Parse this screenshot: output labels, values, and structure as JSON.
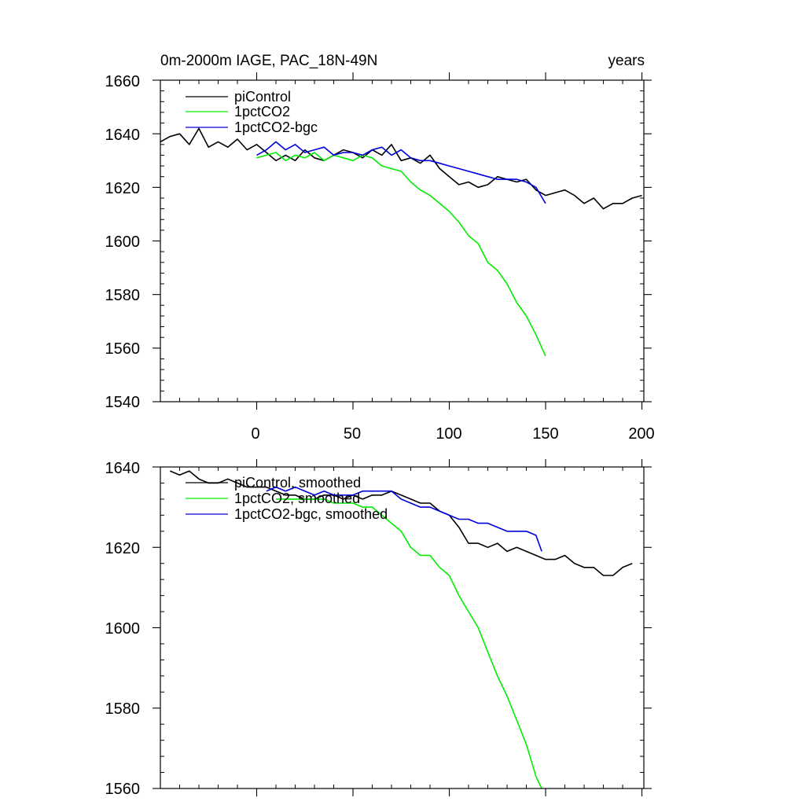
{
  "chart_data": [
    {
      "type": "line",
      "title": "0m-2000m IAGE, PAC_18N-49N",
      "units": "years",
      "xlim": [
        -50,
        201
      ],
      "ylim": [
        1540,
        1660
      ],
      "xticks": [
        0,
        50,
        100,
        150,
        200
      ],
      "xtick_labels": [
        "0",
        "50",
        "100",
        "150",
        "200"
      ],
      "yticks": [
        1540,
        1560,
        1580,
        1600,
        1620,
        1640,
        1660
      ],
      "ytick_labels": [
        "1540",
        "1560",
        "1580",
        "1600",
        "1620",
        "1640",
        "1660"
      ],
      "legend_position": "top-left",
      "series": [
        {
          "name": "piControl",
          "color": "#000000",
          "x": [
            -50,
            -45,
            -40,
            -35,
            -30,
            -25,
            -20,
            -15,
            -10,
            -5,
            0,
            5,
            10,
            15,
            20,
            25,
            30,
            35,
            40,
            45,
            50,
            55,
            60,
            65,
            70,
            75,
            80,
            85,
            90,
            95,
            100,
            105,
            110,
            115,
            120,
            125,
            130,
            135,
            140,
            145,
            150,
            155,
            160,
            165,
            170,
            175,
            180,
            185,
            190,
            195,
            200
          ],
          "values": [
            1637,
            1639,
            1640,
            1636,
            1642,
            1635,
            1637,
            1635,
            1638,
            1634,
            1636,
            1633,
            1630,
            1632,
            1630,
            1634,
            1631,
            1630,
            1632,
            1634,
            1633,
            1631,
            1634,
            1632,
            1636,
            1630,
            1631,
            1629,
            1632,
            1627,
            1624,
            1621,
            1622,
            1620,
            1621,
            1624,
            1623,
            1622,
            1623,
            1619,
            1617,
            1618,
            1619,
            1617,
            1614,
            1616,
            1612,
            1614,
            1614,
            1616,
            1617
          ]
        },
        {
          "name": "1pctCO2",
          "color": "#00ee00",
          "x": [
            0,
            5,
            10,
            15,
            20,
            25,
            30,
            35,
            40,
            45,
            50,
            55,
            60,
            65,
            70,
            75,
            80,
            85,
            90,
            95,
            100,
            105,
            110,
            115,
            120,
            125,
            130,
            135,
            140,
            145,
            150
          ],
          "values": [
            1631,
            1632,
            1633,
            1630,
            1632,
            1631,
            1633,
            1630,
            1632,
            1631,
            1630,
            1632,
            1631,
            1628,
            1627,
            1626,
            1622,
            1619,
            1617,
            1614,
            1611,
            1607,
            1602,
            1599,
            1592,
            1589,
            1584,
            1577,
            1572,
            1565,
            1557
          ]
        },
        {
          "name": "1pctCO2-bgc",
          "color": "#0000dd",
          "x": [
            0,
            5,
            10,
            15,
            20,
            25,
            30,
            35,
            40,
            45,
            50,
            55,
            60,
            65,
            70,
            75,
            80,
            85,
            90,
            95,
            100,
            105,
            110,
            115,
            120,
            125,
            130,
            135,
            140,
            145,
            150
          ],
          "values": [
            1632,
            1634,
            1637,
            1634,
            1636,
            1633,
            1634,
            1635,
            1632,
            1633,
            1633,
            1632,
            1634,
            1635,
            1632,
            1634,
            1631,
            1630,
            1630,
            1629,
            1628,
            1627,
            1626,
            1625,
            1624,
            1623,
            1623,
            1623,
            1622,
            1620,
            1614
          ]
        }
      ]
    },
    {
      "type": "line",
      "xlim": [
        -50,
        201
      ],
      "ylim": [
        1560,
        1640
      ],
      "xticks": [
        0,
        50,
        100,
        150,
        200
      ],
      "yticks": [
        1560,
        1580,
        1600,
        1620,
        1640
      ],
      "ytick_labels": [
        "1560",
        "1580",
        "1600",
        "1620",
        "1640"
      ],
      "legend_position": "top-left",
      "series": [
        {
          "name": "piControl, smoothed",
          "color": "#000000",
          "x": [
            -45,
            -40,
            -35,
            -30,
            -25,
            -20,
            -15,
            -10,
            -5,
            0,
            5,
            10,
            15,
            20,
            25,
            30,
            35,
            40,
            45,
            50,
            55,
            60,
            65,
            70,
            75,
            80,
            85,
            90,
            95,
            100,
            105,
            110,
            115,
            120,
            125,
            130,
            135,
            140,
            145,
            150,
            155,
            160,
            165,
            170,
            175,
            180,
            185,
            190,
            195
          ],
          "values": [
            1639,
            1638,
            1639,
            1637,
            1636,
            1636,
            1637,
            1636,
            1635,
            1635,
            1635,
            1634,
            1633,
            1633,
            1632,
            1632,
            1633,
            1633,
            1632,
            1633,
            1632,
            1633,
            1633,
            1634,
            1633,
            1632,
            1631,
            1631,
            1629,
            1628,
            1625,
            1621,
            1621,
            1620,
            1621,
            1619,
            1620,
            1619,
            1618,
            1617,
            1617,
            1618,
            1616,
            1615,
            1615,
            1613,
            1613,
            1615,
            1616
          ]
        },
        {
          "name": "1pctCO2, smoothed",
          "color": "#00ee00",
          "x": [
            10,
            15,
            20,
            25,
            30,
            35,
            40,
            45,
            50,
            55,
            60,
            65,
            70,
            75,
            80,
            85,
            90,
            95,
            100,
            105,
            110,
            115,
            120,
            125,
            130,
            135,
            140,
            145,
            148
          ],
          "values": [
            1632,
            1632,
            1632,
            1632,
            1632,
            1632,
            1631,
            1631,
            1631,
            1630,
            1630,
            1628,
            1626,
            1624,
            1620,
            1618,
            1618,
            1615,
            1613,
            1608,
            1604,
            1600,
            1594,
            1588,
            1583,
            1577,
            1571,
            1563,
            1560
          ]
        },
        {
          "name": "1pctCO2-bgc, smoothed",
          "color": "#0000dd",
          "x": [
            5,
            10,
            15,
            20,
            25,
            30,
            35,
            40,
            45,
            50,
            55,
            60,
            65,
            70,
            75,
            80,
            85,
            90,
            95,
            100,
            105,
            110,
            115,
            120,
            125,
            130,
            135,
            140,
            145,
            148
          ],
          "values": [
            1634,
            1635,
            1634,
            1635,
            1634,
            1633,
            1634,
            1633,
            1633,
            1633,
            1634,
            1634,
            1634,
            1634,
            1632,
            1631,
            1630,
            1630,
            1629,
            1628,
            1627,
            1627,
            1626,
            1626,
            1625,
            1624,
            1624,
            1624,
            1623,
            1619
          ]
        }
      ]
    }
  ]
}
